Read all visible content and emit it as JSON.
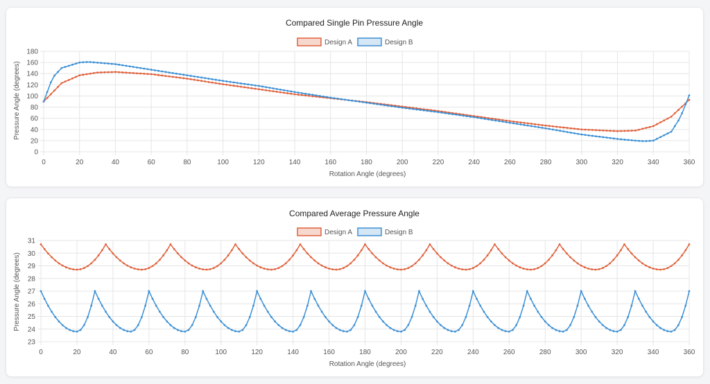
{
  "colors": {
    "design_a": "#e0603a",
    "design_b": "#3b8fd4",
    "grid": "#e5e5e5"
  },
  "chart_data": [
    {
      "type": "line",
      "title": "Compared Single Pin Pressure Angle",
      "xlabel": "Rotation Angle (degrees)",
      "ylabel": "Pressure Angle (degrees)",
      "xlim": [
        0,
        360
      ],
      "ylim": [
        0,
        180
      ],
      "x_ticks": [
        "0",
        "20",
        "40",
        "60",
        "80",
        "100",
        "120",
        "140",
        "160",
        "180",
        "200",
        "220",
        "240",
        "260",
        "280",
        "300",
        "320",
        "340",
        "360"
      ],
      "y_ticks": [
        "0",
        "20",
        "40",
        "60",
        "80",
        "100",
        "120",
        "140",
        "160",
        "180"
      ],
      "legend": [
        "Design A",
        "Design B"
      ],
      "series": [
        {
          "name": "Design A",
          "x": [
            0,
            10,
            20,
            30,
            40,
            60,
            80,
            100,
            120,
            140,
            160,
            180,
            200,
            220,
            240,
            260,
            280,
            300,
            320,
            330,
            340,
            350,
            360
          ],
          "values": [
            90,
            123,
            137,
            142,
            143,
            139,
            131,
            121,
            112,
            103,
            96,
            89,
            81,
            73,
            64,
            55,
            47,
            40,
            37,
            38,
            46,
            63,
            93
          ]
        },
        {
          "name": "Design B",
          "x": [
            0,
            5,
            10,
            20,
            25,
            40,
            60,
            80,
            100,
            120,
            140,
            160,
            180,
            200,
            220,
            240,
            260,
            280,
            300,
            320,
            330,
            335,
            340,
            350,
            355,
            360
          ],
          "values": [
            90,
            133,
            150,
            160,
            161,
            157,
            147,
            137,
            127,
            118,
            107,
            97,
            88,
            79,
            71,
            62,
            52,
            42,
            31,
            23,
            20,
            19,
            20,
            36,
            61,
            101
          ]
        }
      ]
    },
    {
      "type": "line",
      "title": "Compared Average Pressure Angle",
      "xlabel": "Rotation Angle (degrees)",
      "ylabel": "Pressure Angle (degrees)",
      "xlim": [
        0,
        360
      ],
      "ylim": [
        23,
        31
      ],
      "x_ticks": [
        "0",
        "20",
        "40",
        "60",
        "80",
        "100",
        "120",
        "140",
        "160",
        "180",
        "200",
        "220",
        "240",
        "260",
        "280",
        "300",
        "320",
        "340",
        "360"
      ],
      "y_ticks": [
        "23",
        "24",
        "25",
        "26",
        "27",
        "28",
        "29",
        "30",
        "31"
      ],
      "legend": [
        "Design A",
        "Design B"
      ],
      "series": [
        {
          "name": "Design A",
          "period": 36,
          "max": 30.7,
          "min": 28.7,
          "min_at": 20
        },
        {
          "name": "Design B",
          "period": 30,
          "max": 27.0,
          "min": 23.8,
          "min_at": 20
        }
      ]
    }
  ]
}
